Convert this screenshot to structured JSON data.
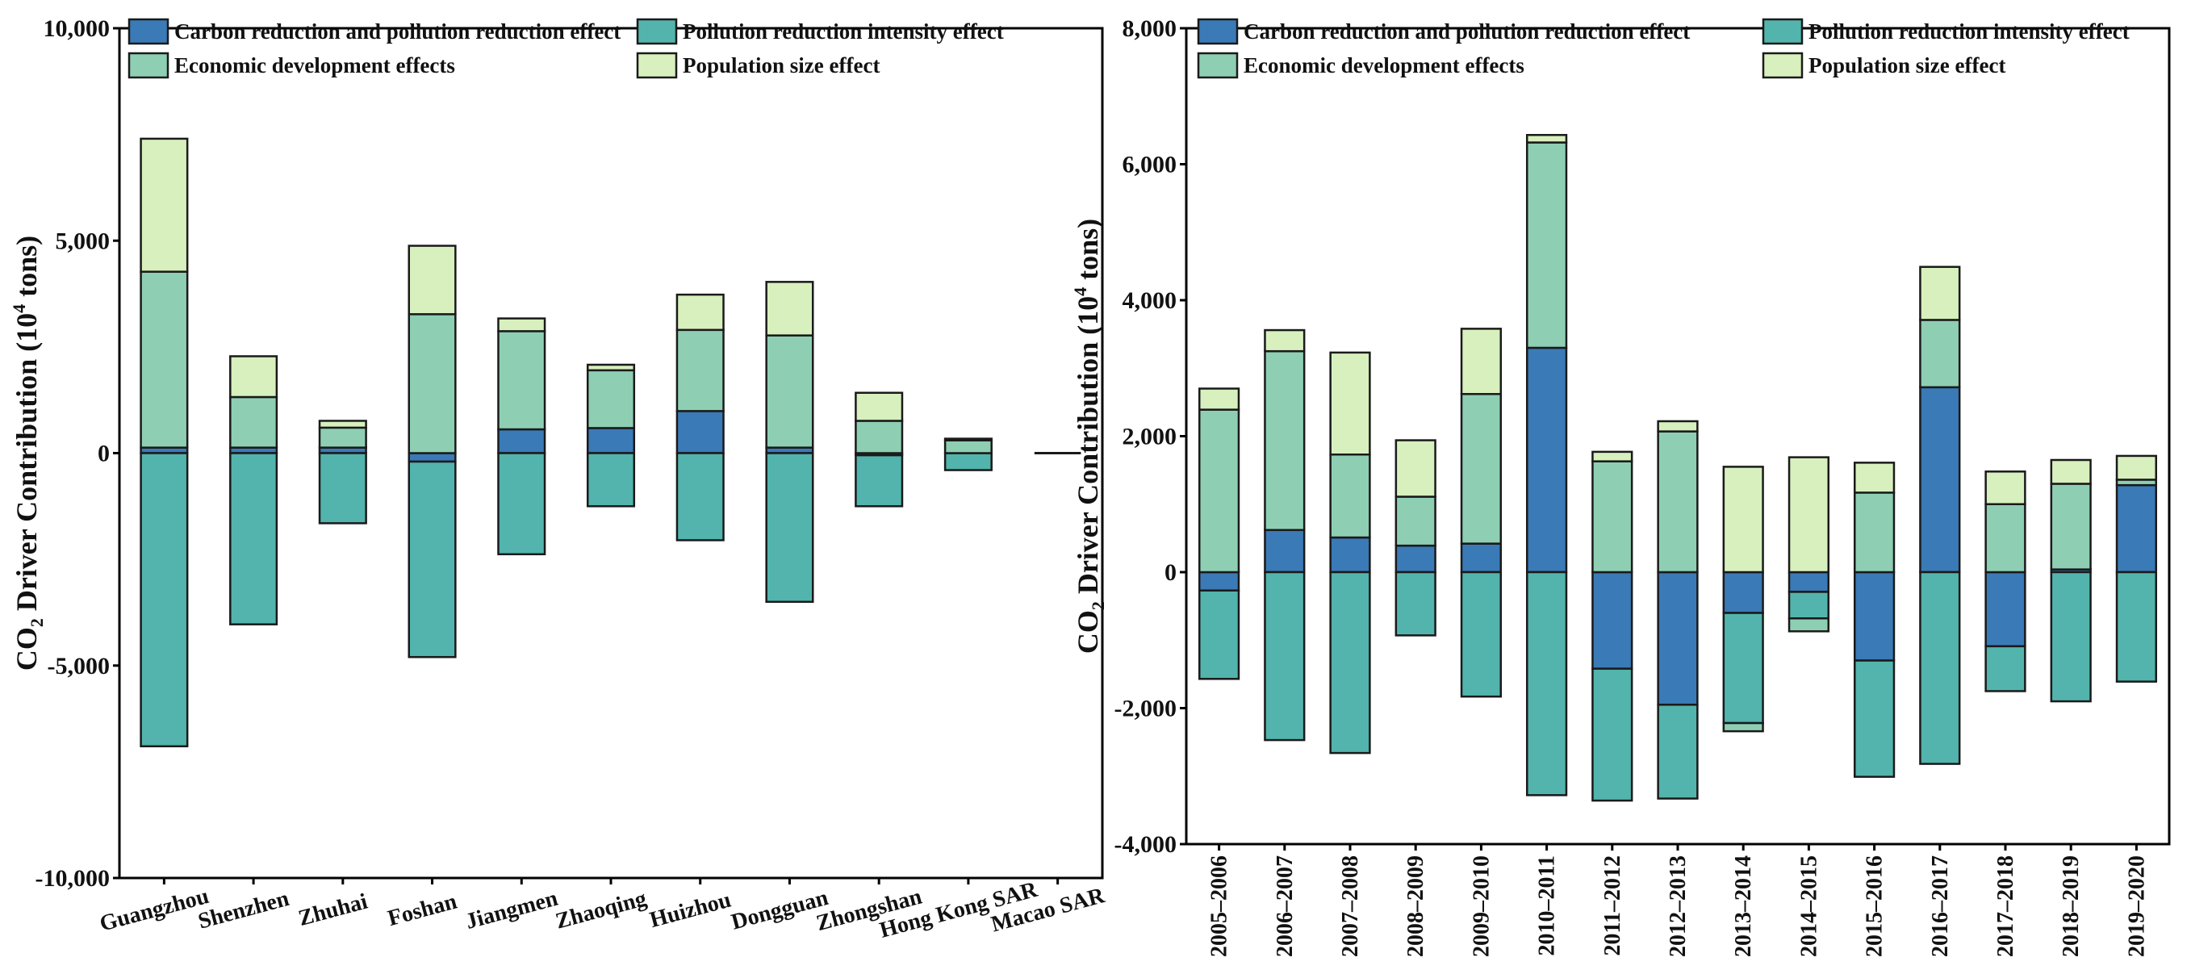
{
  "colors": {
    "carbon": "#3a7ab6",
    "pollution": "#52b4ad",
    "economic": "#8ecfb4",
    "population": "#d7f0bd"
  },
  "legend": [
    {
      "key": "carbon",
      "label": "Carbon reduction and pollution reduction effect"
    },
    {
      "key": "pollution",
      "label": "Pollution reduction intensity effect"
    },
    {
      "key": "economic",
      "label": "Economic development effects"
    },
    {
      "key": "population",
      "label": "Population size effect"
    }
  ],
  "ylabel_parts": {
    "a": "CO",
    "sub": "2",
    "b": " Driver Contribution (10",
    "sup": "4",
    "c": " tons)"
  },
  "chart_data": [
    {
      "type": "bar",
      "stacked": true,
      "title": "",
      "xlabel": "",
      "ylabel": "CO2 Driver Contribution (10^4 tons)",
      "ylim": [
        -10000,
        10000
      ],
      "yticks": [
        -10000,
        -5000,
        0,
        5000,
        10000
      ],
      "ytick_labels": [
        "-10,000",
        "-5,000",
        "0",
        "5,000",
        "10,000"
      ],
      "legend_position": "top",
      "categories": [
        "Guangzhou",
        "Shenzhen",
        "Zhuhai",
        "Foshan",
        "Jiangmen",
        "Zhaoqing",
        "Huizhou",
        "Dongguan",
        "Zhongshan",
        "Hong Kong SAR",
        "Macao SAR"
      ],
      "series": [
        {
          "key": "carbon",
          "name": "Carbon reduction and pollution reduction effect",
          "values": [
            130,
            130,
            130,
            -200,
            560,
            590,
            990,
            130,
            -50,
            0,
            0
          ]
        },
        {
          "key": "pollution",
          "name": "Pollution reduction intensity effect",
          "values": [
            -6900,
            -4030,
            -1650,
            -4600,
            -2380,
            -1250,
            -2050,
            -3500,
            -1200,
            -400,
            0
          ]
        },
        {
          "key": "economic",
          "name": "Economic development effects",
          "values": [
            4140,
            1190,
            470,
            3270,
            2310,
            1360,
            1910,
            2640,
            760,
            300,
            0
          ]
        },
        {
          "key": "population",
          "name": "Population size effect",
          "values": [
            3130,
            960,
            160,
            1610,
            300,
            130,
            830,
            1260,
            660,
            40,
            0
          ]
        }
      ]
    },
    {
      "type": "bar",
      "stacked": true,
      "title": "",
      "xlabel": "",
      "ylabel": "CO2 Driver Contribution (10^4 tons)",
      "ylim": [
        -4000,
        8000
      ],
      "yticks": [
        -4000,
        -2000,
        0,
        2000,
        4000,
        6000,
        8000
      ],
      "ytick_labels": [
        "-4,000",
        "-2,000",
        "0",
        "2,000",
        "4,000",
        "6,000",
        "8,000"
      ],
      "legend_position": "top",
      "categories": [
        "2005–2006",
        "2006–2007",
        "2007–2008",
        "2008–2009",
        "2009–2010",
        "2010–2011",
        "2011–2012",
        "2012–2013",
        "2013–2014",
        "2014–2015",
        "2015–2016",
        "2016–2017",
        "2017–2018",
        "2018–2019",
        "2019–2020"
      ],
      "series": [
        {
          "key": "carbon",
          "name": "Carbon reduction and pollution reduction effect",
          "values": [
            -270,
            620,
            510,
            390,
            420,
            3300,
            -1420,
            -1950,
            -600,
            -290,
            -1300,
            2720,
            -1090,
            40,
            1280
          ]
        },
        {
          "key": "pollution",
          "name": "Pollution reduction intensity effect",
          "values": [
            -1300,
            -2470,
            -2660,
            -930,
            -1830,
            -3280,
            -1940,
            -1380,
            -1620,
            -390,
            -1710,
            -2820,
            -660,
            -1900,
            -1610
          ]
        },
        {
          "key": "economic",
          "name": "Economic development effects",
          "values": [
            2390,
            2630,
            1220,
            720,
            2200,
            3020,
            1630,
            2070,
            -120,
            -190,
            1170,
            990,
            1000,
            1260,
            80
          ]
        },
        {
          "key": "population",
          "name": "Population size effect",
          "values": [
            310,
            310,
            1500,
            830,
            960,
            110,
            140,
            150,
            1550,
            1690,
            440,
            780,
            480,
            350,
            350
          ]
        }
      ]
    }
  ]
}
